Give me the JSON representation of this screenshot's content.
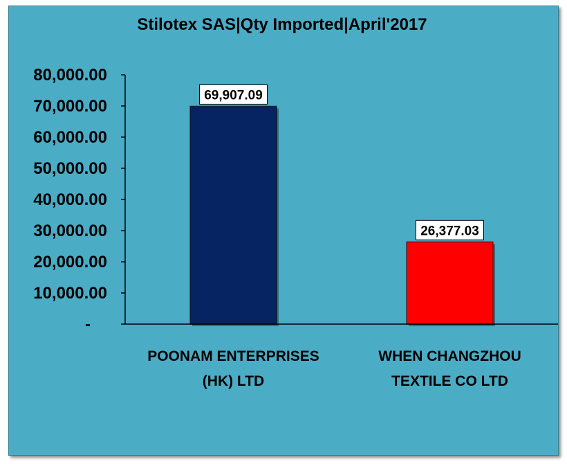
{
  "chart_data": {
    "type": "bar",
    "title": "Stilotex SAS|Qty Imported|April'2017",
    "categories": [
      [
        "POONAM ENTERPRISES",
        "(HK) LTD"
      ],
      [
        "WHEN CHANGZHOU",
        "TEXTILE CO LTD"
      ]
    ],
    "values": [
      69907.09,
      26377.03
    ],
    "data_labels": [
      "69,907.09",
      "26,377.03"
    ],
    "bar_colors": [
      "#062461",
      "#ff0000"
    ],
    "ylim": [
      0,
      80000
    ],
    "yticks": [
      0,
      10000,
      20000,
      30000,
      40000,
      50000,
      60000,
      70000,
      80000
    ],
    "ytick_labels": [
      "-",
      "10,000.00",
      "20,000.00",
      "30,000.00",
      "40,000.00",
      "50,000.00",
      "60,000.00",
      "70,000.00",
      "80,000.00"
    ],
    "xlabel": "",
    "ylabel": "",
    "grid": false,
    "legend": "none",
    "background_color": "#4bacc6"
  }
}
